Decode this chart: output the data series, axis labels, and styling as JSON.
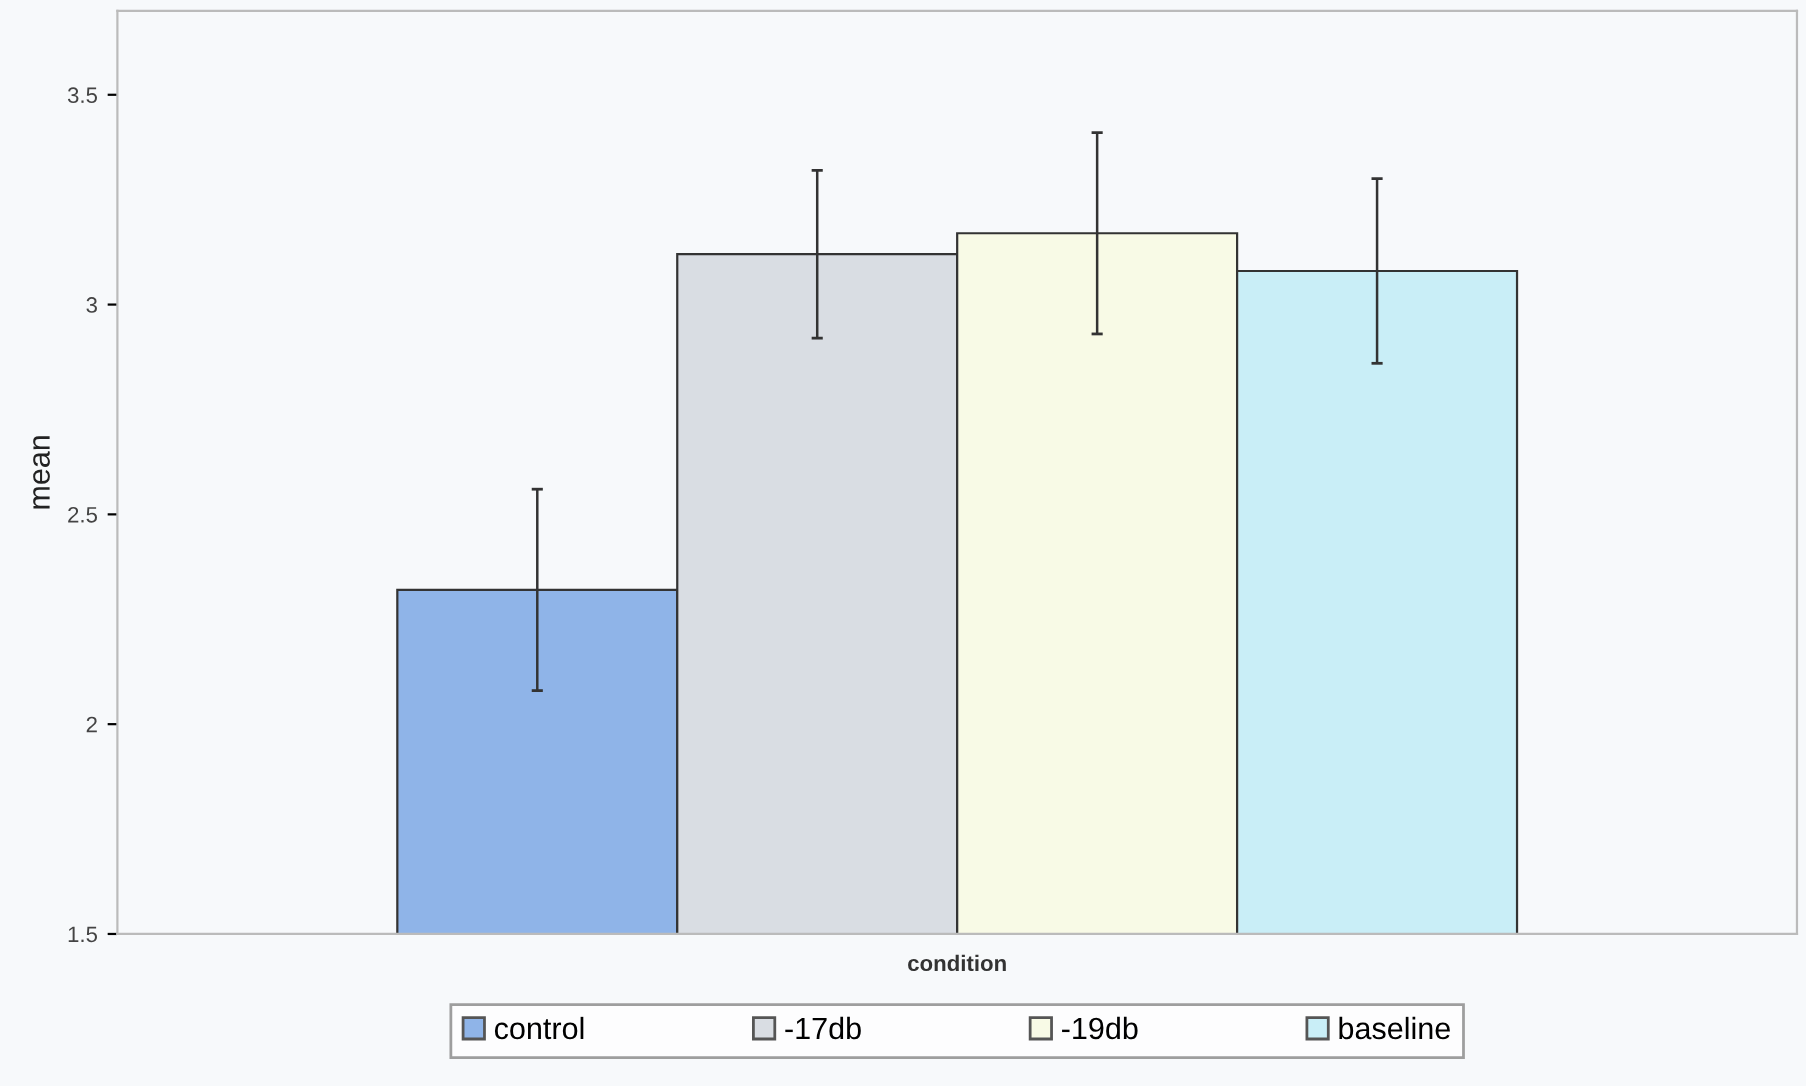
{
  "chart_data": {
    "type": "bar",
    "xlabel": "condition",
    "ylabel": "mean",
    "categories": [
      null
    ],
    "series": [
      {
        "name": "control",
        "color": "#8fb4e8",
        "values": [
          2.32
        ],
        "errors": [
          0.24
        ]
      },
      {
        "name": "-17db",
        "color": "#d9dde3",
        "values": [
          3.12
        ],
        "errors": [
          0.2
        ]
      },
      {
        "name": "-19db",
        "color": "#f8fae6",
        "values": [
          3.17
        ],
        "errors": [
          0.24
        ]
      },
      {
        "name": "baseline",
        "color": "#c9eef7",
        "values": [
          3.08
        ],
        "errors": [
          0.22
        ]
      }
    ],
    "ylim": [
      1.5,
      3.7
    ],
    "yticks": [
      1.5,
      2,
      2.5,
      3,
      3.5
    ],
    "grid": false,
    "legend": "bottom"
  }
}
